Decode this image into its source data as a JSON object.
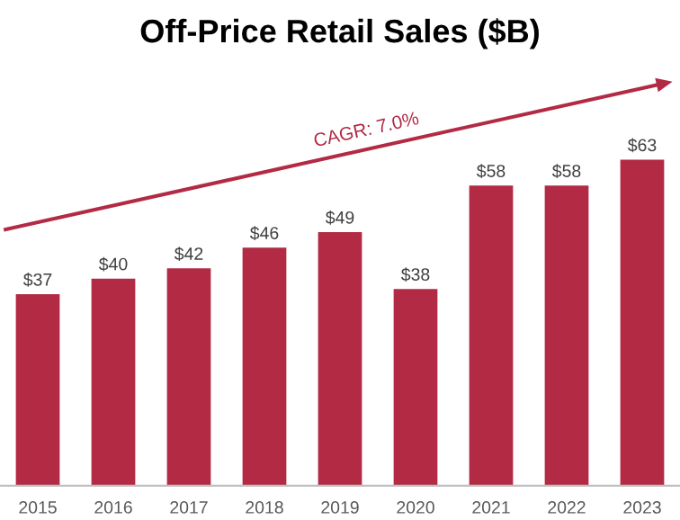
{
  "chart_data": {
    "type": "bar",
    "title": "Off-Price Retail Sales ($B)",
    "categories": [
      "2015",
      "2016",
      "2017",
      "2018",
      "2019",
      "2020",
      "2021",
      "2022",
      "2023"
    ],
    "values": [
      37,
      40,
      42,
      46,
      49,
      38,
      58,
      58,
      63
    ],
    "value_labels": [
      "$37",
      "$40",
      "$42",
      "$46",
      "$49",
      "$38",
      "$58",
      "$58",
      "$63"
    ],
    "color": "#b22a44",
    "annotations": [
      "CAGR: 7.0%"
    ],
    "grid": false,
    "legend": false
  }
}
